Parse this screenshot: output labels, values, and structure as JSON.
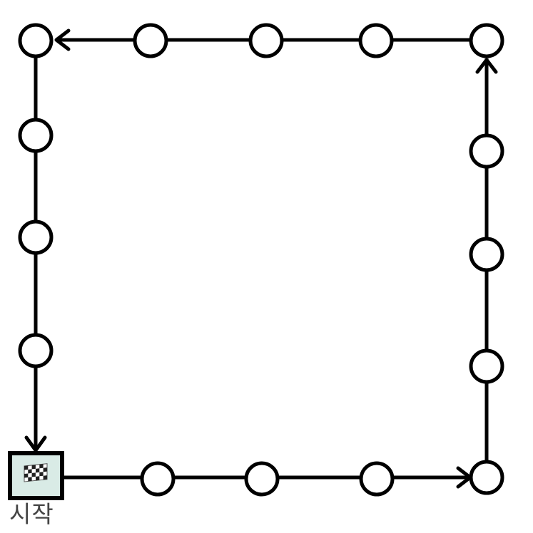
{
  "diagram": {
    "title": "",
    "start_label": "시작",
    "start_icon": "checkered-flag-icon",
    "path_direction": "counter-clockwise",
    "board_size": {
      "spaces_per_side": 5,
      "total_spaces": 16
    },
    "colors": {
      "line": "#000000",
      "space_fill": "#ffffff",
      "start_fill": "#d9ebe6",
      "label": "#444444"
    },
    "spaces": [
      {
        "name": "start-space",
        "kind": "start",
        "side": "bottom",
        "order": 0
      },
      {
        "name": "bottom-space-1",
        "kind": "circle",
        "side": "bottom",
        "order": 1
      },
      {
        "name": "bottom-space-2",
        "kind": "circle",
        "side": "bottom",
        "order": 2
      },
      {
        "name": "bottom-space-3",
        "kind": "circle",
        "side": "bottom",
        "order": 3
      },
      {
        "name": "corner-bottom-right-space",
        "kind": "circle",
        "side": "corner",
        "order": 4
      },
      {
        "name": "right-space-1",
        "kind": "circle",
        "side": "right",
        "order": 5
      },
      {
        "name": "right-space-2",
        "kind": "circle",
        "side": "right",
        "order": 6
      },
      {
        "name": "right-space-3",
        "kind": "circle",
        "side": "right",
        "order": 7
      },
      {
        "name": "corner-top-right-space",
        "kind": "circle",
        "side": "corner",
        "order": 8
      },
      {
        "name": "top-space-1",
        "kind": "circle",
        "side": "top",
        "order": 9
      },
      {
        "name": "top-space-2",
        "kind": "circle",
        "side": "top",
        "order": 10
      },
      {
        "name": "top-space-3",
        "kind": "circle",
        "side": "top",
        "order": 11
      },
      {
        "name": "corner-top-left-space",
        "kind": "circle",
        "side": "corner",
        "order": 12
      },
      {
        "name": "left-space-1",
        "kind": "circle",
        "side": "left",
        "order": 13
      },
      {
        "name": "left-space-2",
        "kind": "circle",
        "side": "left",
        "order": 14
      },
      {
        "name": "left-space-3",
        "kind": "circle",
        "side": "left",
        "order": 15
      }
    ],
    "arrows": [
      {
        "name": "arrow-to-bottom-right",
        "from": "bottom-space-3",
        "to": "corner-bottom-right-space"
      },
      {
        "name": "arrow-to-top-right",
        "from": "right-space-1",
        "to": "corner-top-right-space"
      },
      {
        "name": "arrow-to-top-left",
        "from": "top-space-1",
        "to": "corner-top-left-space"
      },
      {
        "name": "arrow-to-start",
        "from": "left-space-3",
        "to": "start-space"
      }
    ]
  }
}
